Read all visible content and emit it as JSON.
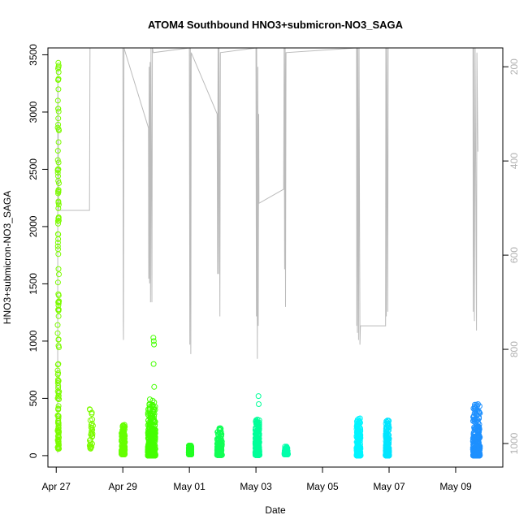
{
  "chart_data": {
    "type": "scatter",
    "title": "ATOM4 Southbound HNO3+submicron-NO3_SAGA",
    "xlabel": "Date",
    "ylabel": "HNO3+submicron-NO3_SAGA",
    "x_unit": "days",
    "x_range": [
      "2018-04-26T18:00",
      "2018-05-10T10:00"
    ],
    "ylim": [
      -100,
      3560
    ],
    "y_ticks": [
      0,
      500,
      1000,
      1500,
      2000,
      2500,
      3000,
      3500
    ],
    "x_ticks": [
      {
        "date": "2018-04-27",
        "label": "Apr 27"
      },
      {
        "date": "2018-04-29",
        "label": "Apr 29"
      },
      {
        "date": "2018-05-01",
        "label": "May 01"
      },
      {
        "date": "2018-05-03",
        "label": "May 03"
      },
      {
        "date": "2018-05-05",
        "label": "May 05"
      },
      {
        "date": "2018-05-07",
        "label": "May 07"
      },
      {
        "date": "2018-05-09",
        "label": "May 09"
      }
    ],
    "secondary_axis": {
      "label": "",
      "scale": "pressure (reversed)",
      "range": [
        160,
        1050
      ],
      "ticks": [
        200,
        400,
        600,
        800,
        1000
      ],
      "color": "#b0b0b0"
    },
    "grid": false,
    "legend": "none",
    "clusters": [
      {
        "date": "2018-04-27",
        "start_h": 1.0,
        "end_h": 2.0,
        "color": "#7CFC00",
        "ymin": 60,
        "ymax": 3430,
        "n": 130,
        "skew": 0.85,
        "outliers": [
          [
            1.5,
            3430
          ],
          [
            1.3,
            3380
          ],
          [
            1.6,
            3290
          ],
          [
            1.4,
            3280
          ],
          [
            1.2,
            3100
          ],
          [
            1.7,
            2850
          ],
          [
            1.5,
            2500
          ],
          [
            1.3,
            2440
          ],
          [
            1.6,
            2320
          ],
          [
            1.5,
            2160
          ],
          [
            1.4,
            1890
          ],
          [
            1.5,
            1760
          ],
          [
            1.6,
            1630
          ],
          [
            1.5,
            1410
          ],
          [
            1.4,
            1340
          ],
          [
            1.6,
            960
          ],
          [
            1.5,
            800
          ],
          [
            1.4,
            720
          ],
          [
            1.5,
            650
          ],
          [
            1.6,
            550
          ]
        ]
      },
      {
        "date": "2018-04-28",
        "start_h": 0.0,
        "end_h": 2.5,
        "color": "#7CFC00",
        "ymin": 60,
        "ymax": 410,
        "n": 30,
        "skew": 0.2,
        "outliers": []
      },
      {
        "date": "2018-04-29",
        "start_h": -1.0,
        "end_h": 1.5,
        "color": "#66FF00",
        "ymin": 10,
        "ymax": 270,
        "n": 160,
        "skew": 0.5,
        "outliers": []
      },
      {
        "date": "2018-04-29",
        "start_h": 18.0,
        "end_h": 23.5,
        "color": "#44FF00",
        "ymin": 0,
        "ymax": 500,
        "n": 450,
        "skew": 1.4,
        "outliers": [
          [
            22.0,
            1030
          ],
          [
            22.3,
            1000
          ],
          [
            22.5,
            970
          ],
          [
            22.2,
            800
          ],
          [
            22.6,
            600
          ],
          [
            21.5,
            480
          ]
        ]
      },
      {
        "date": "2018-05-01",
        "start_h": -0.5,
        "end_h": 1.5,
        "color": "#22FF22",
        "ymin": 10,
        "ymax": 90,
        "n": 160,
        "skew": 0.8,
        "outliers": []
      },
      {
        "date": "2018-05-01",
        "start_h": 20.0,
        "end_h": 23.5,
        "color": "#11FF55",
        "ymin": 5,
        "ymax": 240,
        "n": 200,
        "skew": 1.4,
        "outliers": []
      },
      {
        "date": "2018-05-03",
        "start_h": -0.5,
        "end_h": 2.5,
        "color": "#00FF99",
        "ymin": 5,
        "ymax": 320,
        "n": 260,
        "skew": 1.3,
        "outliers": [
          [
            1.8,
            520
          ],
          [
            2.0,
            450
          ]
        ]
      },
      {
        "date": "2018-05-03",
        "start_h": 20.5,
        "end_h": 23.0,
        "color": "#00FFAA",
        "ymin": 10,
        "ymax": 80,
        "n": 100,
        "skew": 0.8,
        "outliers": []
      },
      {
        "date": "2018-05-06",
        "start_h": 0.5,
        "end_h": 3.5,
        "color": "#00F5FF",
        "ymin": 0,
        "ymax": 330,
        "n": 220,
        "skew": 1.5,
        "outliers": []
      },
      {
        "date": "2018-05-06",
        "start_h": 21.5,
        "end_h": 24.0,
        "color": "#00E5FF",
        "ymin": 0,
        "ymax": 310,
        "n": 220,
        "skew": 1.3,
        "outliers": []
      },
      {
        "date": "2018-05-09",
        "start_h": 12.5,
        "end_h": 17.5,
        "color": "#1E90FF",
        "ymin": 0,
        "ymax": 450,
        "n": 300,
        "skew": 1.0,
        "outliers": []
      }
    ],
    "pressure_trace": {
      "color": "#bbbbbb",
      "points": [
        [
          "2018-04-27T01:00",
          1020
        ],
        [
          "2018-04-27T01:10",
          200
        ],
        [
          "2018-04-27T01:30",
          370
        ],
        [
          "2018-04-27T01:40",
          505
        ],
        [
          "2018-04-27T02:00",
          505
        ],
        [
          "2018-04-28T00:00",
          505
        ],
        [
          "2018-04-28T00:20",
          160
        ],
        [
          "2018-04-28T02:00",
          160
        ],
        [
          "2018-04-29T00:00",
          160
        ],
        [
          "2018-04-29T00:20",
          740
        ],
        [
          "2018-04-29T00:30",
          780
        ],
        [
          "2018-04-29T00:50",
          160
        ],
        [
          "2018-04-29T18:30",
          330
        ],
        [
          "2018-04-29T18:40",
          650
        ],
        [
          "2018-04-29T19:00",
          200
        ],
        [
          "2018-04-29T19:20",
          660
        ],
        [
          "2018-04-29T19:40",
          190
        ],
        [
          "2018-04-29T20:00",
          700
        ],
        [
          "2018-04-29T20:20",
          160
        ],
        [
          "2018-04-29T21:00",
          700
        ],
        [
          "2018-04-29T21:20",
          160
        ],
        [
          "2018-04-29T22:00",
          170
        ],
        [
          "2018-05-01T00:00",
          160
        ],
        [
          "2018-05-01T00:20",
          790
        ],
        [
          "2018-05-01T00:40",
          160
        ],
        [
          "2018-05-01T01:00",
          810
        ],
        [
          "2018-05-01T01:20",
          170
        ],
        [
          "2018-05-01T20:00",
          300
        ],
        [
          "2018-05-01T20:20",
          640
        ],
        [
          "2018-05-01T20:40",
          160
        ],
        [
          "2018-05-01T21:00",
          640
        ],
        [
          "2018-05-01T21:20",
          160
        ],
        [
          "2018-05-01T22:00",
          730
        ],
        [
          "2018-05-01T22:20",
          170
        ],
        [
          "2018-05-03T00:00",
          160
        ],
        [
          "2018-05-03T00:10",
          510
        ],
        [
          "2018-05-03T00:20",
          730
        ],
        [
          "2018-05-03T00:30",
          160
        ],
        [
          "2018-05-03T01:00",
          820
        ],
        [
          "2018-05-03T01:20",
          200
        ],
        [
          "2018-05-03T01:40",
          750
        ],
        [
          "2018-05-03T02:00",
          300
        ],
        [
          "2018-05-03T02:10",
          490
        ],
        [
          "2018-05-03T20:00",
          460
        ],
        [
          "2018-05-03T20:20",
          160
        ],
        [
          "2018-05-03T20:40",
          630
        ],
        [
          "2018-05-03T21:00",
          160
        ],
        [
          "2018-05-03T21:20",
          710
        ],
        [
          "2018-05-03T21:40",
          170
        ],
        [
          "2018-05-06T00:30",
          160
        ],
        [
          "2018-05-06T00:40",
          750
        ],
        [
          "2018-05-06T00:50",
          160
        ],
        [
          "2018-05-06T01:10",
          765
        ],
        [
          "2018-05-06T01:30",
          160
        ],
        [
          "2018-05-06T02:00",
          780
        ],
        [
          "2018-05-06T02:20",
          160
        ],
        [
          "2018-05-06T03:00",
          790
        ],
        [
          "2018-05-06T03:20",
          750
        ],
        [
          "2018-05-06T21:30",
          750
        ],
        [
          "2018-05-06T21:40",
          160
        ],
        [
          "2018-05-06T22:00",
          730
        ],
        [
          "2018-05-06T22:20",
          160
        ],
        [
          "2018-05-06T23:00",
          720
        ],
        [
          "2018-05-06T23:20",
          160
        ],
        [
          "2018-05-09T12:30",
          160
        ],
        [
          "2018-05-09T12:40",
          720
        ],
        [
          "2018-05-09T13:00",
          160
        ],
        [
          "2018-05-09T13:30",
          740
        ],
        [
          "2018-05-09T14:00",
          160
        ],
        [
          "2018-05-09T15:00",
          760
        ],
        [
          "2018-05-09T15:20",
          170
        ],
        [
          "2018-05-09T16:00",
          380
        ]
      ]
    }
  }
}
